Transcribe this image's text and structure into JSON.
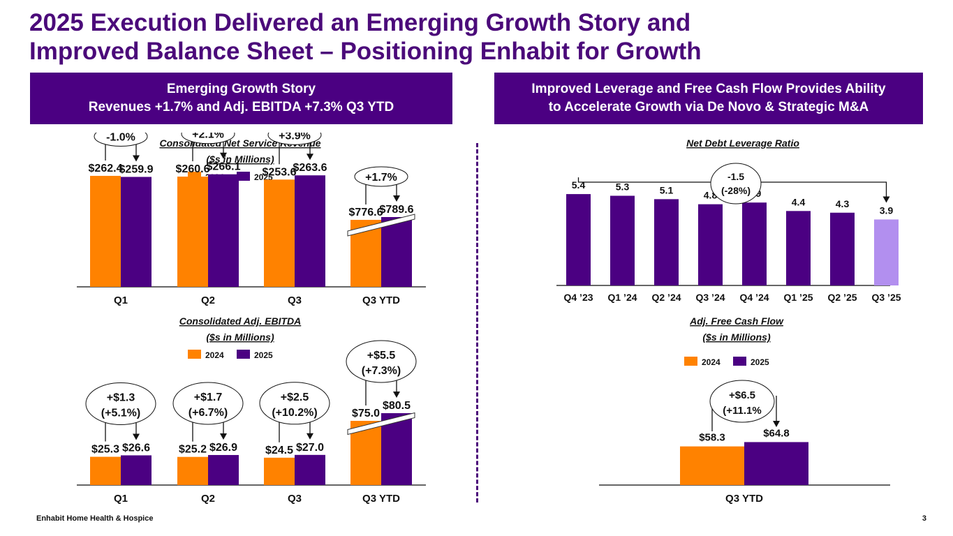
{
  "title": {
    "line1": "2025 Execution Delivered an Emerging Growth Story and",
    "line2": "Improved Balance Sheet – Positioning Enhabit for Growth"
  },
  "banners": {
    "left": {
      "line1": "Emerging Growth Story",
      "line2": "Revenues +1.7% and Adj. EBITDA +7.3% Q3 YTD"
    },
    "right": {
      "line1": "Improved Leverage and Free Cash Flow Provides Ability",
      "line2": "to Accelerate Growth via De Novo & Strategic M&A"
    }
  },
  "colors": {
    "brand_purple": "#4b0082",
    "orange": "#ff8200",
    "light_purple": "#b28fef",
    "title_purple": "#4b0a7a"
  },
  "footer": {
    "company": "Enhabit Home Health & Hospice",
    "page_number": "3"
  },
  "chart_data": [
    {
      "id": "revenue",
      "type": "bar",
      "title": "Consolidated Net Service Revenue",
      "subtitle": "($s in Millions)",
      "categories": [
        "Q1",
        "Q2",
        "Q3",
        "Q3 YTD"
      ],
      "series": [
        {
          "name": "2024",
          "color": "#ff8200",
          "values": [
            262.4,
            260.6,
            253.6,
            776.6
          ],
          "labels": [
            "$262.4",
            "$260.6",
            "$253.6",
            "$776.6"
          ]
        },
        {
          "name": "2025",
          "color": "#4b0082",
          "values": [
            259.9,
            266.1,
            263.6,
            789.6
          ],
          "labels": [
            "$259.9",
            "$266.1",
            "$263.6",
            "$789.6"
          ]
        }
      ],
      "annotations": [
        {
          "category": "Q1",
          "text": [
            "-1.0%"
          ]
        },
        {
          "category": "Q2",
          "text": [
            "+2.1%"
          ]
        },
        {
          "category": "Q3",
          "text": [
            "+3.9%"
          ]
        },
        {
          "category": "Q3 YTD",
          "text": [
            "+1.7%"
          ]
        }
      ],
      "axis_break_on": "Q3 YTD",
      "legend": "top-center",
      "grid": false,
      "ylim": [
        0,
        330
      ]
    },
    {
      "id": "ebitda",
      "type": "bar",
      "title": "Consolidated Adj. EBITDA",
      "subtitle": "($s in Millions)",
      "categories": [
        "Q1",
        "Q2",
        "Q3",
        "Q3 YTD"
      ],
      "series": [
        {
          "name": "2024",
          "color": "#ff8200",
          "values": [
            25.3,
            25.2,
            24.5,
            75.0
          ],
          "labels": [
            "$25.3",
            "$25.2",
            "$24.5",
            "$75.0"
          ]
        },
        {
          "name": "2025",
          "color": "#4b0082",
          "values": [
            26.6,
            26.9,
            27.0,
            80.5
          ],
          "labels": [
            "$26.6",
            "$26.9",
            "$27.0",
            "$80.5"
          ]
        }
      ],
      "annotations": [
        {
          "category": "Q1",
          "text": [
            "+$1.3",
            "(+5.1%)"
          ]
        },
        {
          "category": "Q2",
          "text": [
            "+$1.7",
            "(+6.7%)"
          ]
        },
        {
          "category": "Q3",
          "text": [
            "+$2.5",
            "(+10.2%)"
          ]
        },
        {
          "category": "Q3 YTD",
          "text": [
            "+$5.5",
            "(+7.3%)"
          ]
        }
      ],
      "axis_break_on": "Q3 YTD",
      "legend": "top-center",
      "grid": false,
      "ylim": [
        0,
        100
      ]
    },
    {
      "id": "leverage",
      "type": "bar",
      "title": "Net Debt Leverage Ratio",
      "categories": [
        "Q4 ’23",
        "Q1 ’24",
        "Q2 ’24",
        "Q3 ’24",
        "Q4 ’24",
        "Q1 ’25",
        "Q2 ’25",
        "Q3 ’25"
      ],
      "values": [
        5.4,
        5.3,
        5.1,
        4.8,
        4.9,
        4.4,
        4.3,
        3.9
      ],
      "labels": [
        "5.4",
        "5.3",
        "5.1",
        "4.8",
        "4.9",
        "4.4",
        "4.3",
        "3.9"
      ],
      "bar_colors": [
        "#4b0082",
        "#4b0082",
        "#4b0082",
        "#4b0082",
        "#4b0082",
        "#4b0082",
        "#4b0082",
        "#b28fef"
      ],
      "annotation": {
        "from": "Q4 ’23",
        "to": "Q3 ’25",
        "text": [
          "-1.5",
          "(-28%)"
        ]
      },
      "grid": false,
      "ylim": [
        0,
        6.6
      ]
    },
    {
      "id": "fcf",
      "type": "bar",
      "title": "Adj. Free Cash Flow",
      "subtitle": "($s in Millions)",
      "categories": [
        "Q3 YTD"
      ],
      "series": [
        {
          "name": "2024",
          "color": "#ff8200",
          "values": [
            58.3
          ],
          "labels": [
            "$58.3"
          ]
        },
        {
          "name": "2025",
          "color": "#4b0082",
          "values": [
            64.8
          ],
          "labels": [
            "$64.8"
          ]
        }
      ],
      "annotations": [
        {
          "category": "Q3 YTD",
          "text": [
            "+$6.5",
            "(+11.1%"
          ]
        }
      ],
      "legend": "top-center",
      "grid": false,
      "ylim": [
        0,
        200
      ]
    }
  ]
}
